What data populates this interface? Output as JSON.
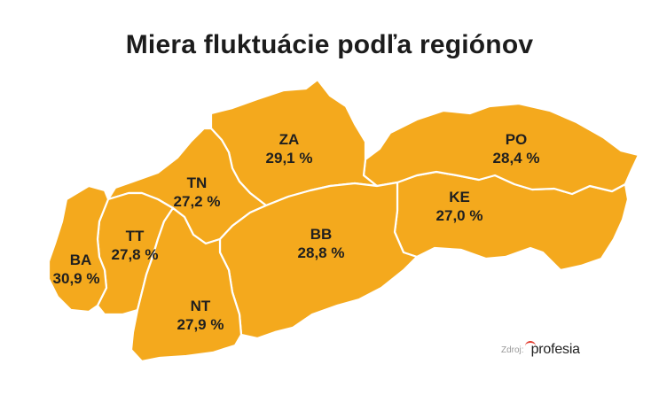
{
  "title": "Miera fluktuácie podľa regiónov",
  "accent_color": "#f4a91d",
  "regions": [
    {
      "code": "BA",
      "value": "30,9 %"
    },
    {
      "code": "TT",
      "value": "27,8 %"
    },
    {
      "code": "TN",
      "value": "27,2 %"
    },
    {
      "code": "NT",
      "value": "27,9 %"
    },
    {
      "code": "ZA",
      "value": "29,1 %"
    },
    {
      "code": "BB",
      "value": "28,8 %"
    },
    {
      "code": "PO",
      "value": "28,4 %"
    },
    {
      "code": "KE",
      "value": "27,0 %"
    }
  ],
  "source": {
    "label": "Zdroj:",
    "logo_text": "profesia",
    "logo_accent_color": "#e23b2e"
  }
}
